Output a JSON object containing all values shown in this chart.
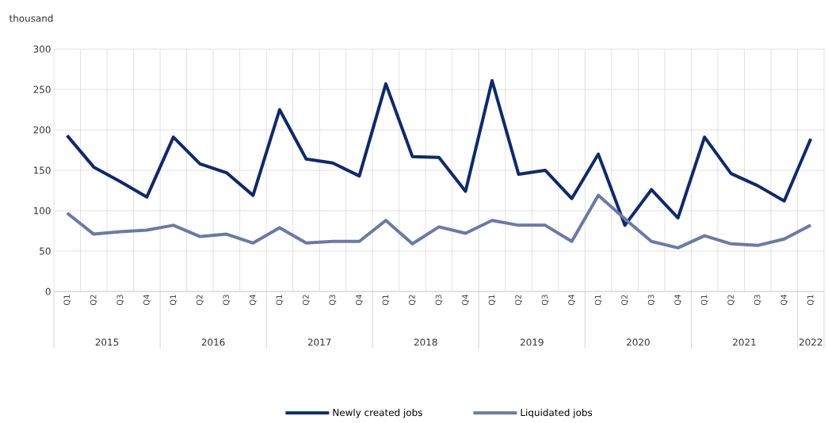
{
  "chart_data": {
    "type": "line",
    "ylabel": "thousand",
    "categories": [
      "Q1",
      "Q2",
      "Q3",
      "Q4",
      "Q1",
      "Q2",
      "Q3",
      "Q4",
      "Q1",
      "Q2",
      "Q3",
      "Q4",
      "Q1",
      "Q2",
      "Q3",
      "Q4",
      "Q1",
      "Q2",
      "Q3",
      "Q4",
      "Q1",
      "Q2",
      "Q3",
      "Q4",
      "Q1",
      "Q2",
      "Q3",
      "Q4",
      "Q1"
    ],
    "annotations": [
      "2015",
      "2016",
      "2017",
      "2018",
      "2019",
      "2020",
      "2021",
      "2022"
    ],
    "series": [
      {
        "name": "Newly created jobs",
        "color": "#0d2a6e",
        "values": [
          193,
          154,
          136,
          117,
          191,
          158,
          147,
          119,
          225,
          164,
          159,
          143,
          257,
          167,
          166,
          124,
          261,
          145,
          150,
          115,
          170,
          82,
          126,
          91,
          191,
          146,
          131,
          112,
          189
        ]
      },
      {
        "name": "Liquidated jobs",
        "color": "#6a79a8",
        "values": [
          97,
          71,
          74,
          76,
          82,
          68,
          71,
          60,
          79,
          60,
          62,
          62,
          88,
          59,
          80,
          72,
          88,
          82,
          82,
          62,
          119,
          90,
          62,
          54,
          69,
          59,
          57,
          65,
          82
        ]
      }
    ],
    "ylim": [
      0,
      300
    ],
    "yticks": [
      0,
      50,
      100,
      150,
      200,
      250,
      300
    ],
    "grid": true,
    "legend": "bottom",
    "marker": "none",
    "line_style": "solid"
  }
}
